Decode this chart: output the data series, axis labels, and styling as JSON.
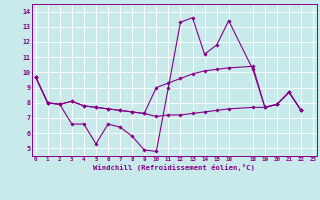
{
  "xlabel": "Windchill (Refroidissement éolien,°C)",
  "xlim": [
    -0.3,
    23.3
  ],
  "ylim": [
    4.5,
    14.5
  ],
  "yticks": [
    5,
    6,
    7,
    8,
    9,
    10,
    11,
    12,
    13,
    14
  ],
  "xticks": [
    0,
    1,
    2,
    3,
    4,
    5,
    6,
    7,
    8,
    9,
    10,
    11,
    12,
    13,
    14,
    15,
    16,
    18,
    19,
    20,
    21,
    22,
    23
  ],
  "bg_color": "#c8eaea",
  "line_color": "#880088",
  "grid_color": "#ffffff",
  "x_vals": [
    0,
    1,
    2,
    3,
    4,
    5,
    6,
    7,
    8,
    9,
    10,
    11,
    12,
    13,
    14,
    15,
    16,
    18,
    19,
    20,
    21,
    22
  ],
  "series1": [
    9.7,
    8.0,
    7.9,
    6.6,
    6.6,
    5.3,
    6.6,
    6.4,
    5.8,
    4.9,
    4.8,
    9.0,
    13.3,
    13.6,
    11.2,
    11.8,
    13.4,
    10.2,
    7.7,
    7.9,
    8.7,
    7.5
  ],
  "series2": [
    9.7,
    8.0,
    7.9,
    8.1,
    7.8,
    7.7,
    7.6,
    7.5,
    7.4,
    7.3,
    9.0,
    9.3,
    9.6,
    9.9,
    10.1,
    10.2,
    10.3,
    10.4,
    7.7,
    7.9,
    8.7,
    7.5
  ],
  "series3": [
    9.7,
    8.0,
    7.9,
    8.1,
    7.8,
    7.7,
    7.6,
    7.5,
    7.4,
    7.3,
    7.1,
    7.2,
    7.2,
    7.3,
    7.4,
    7.5,
    7.6,
    7.7,
    7.7,
    7.9,
    8.7,
    7.5
  ]
}
